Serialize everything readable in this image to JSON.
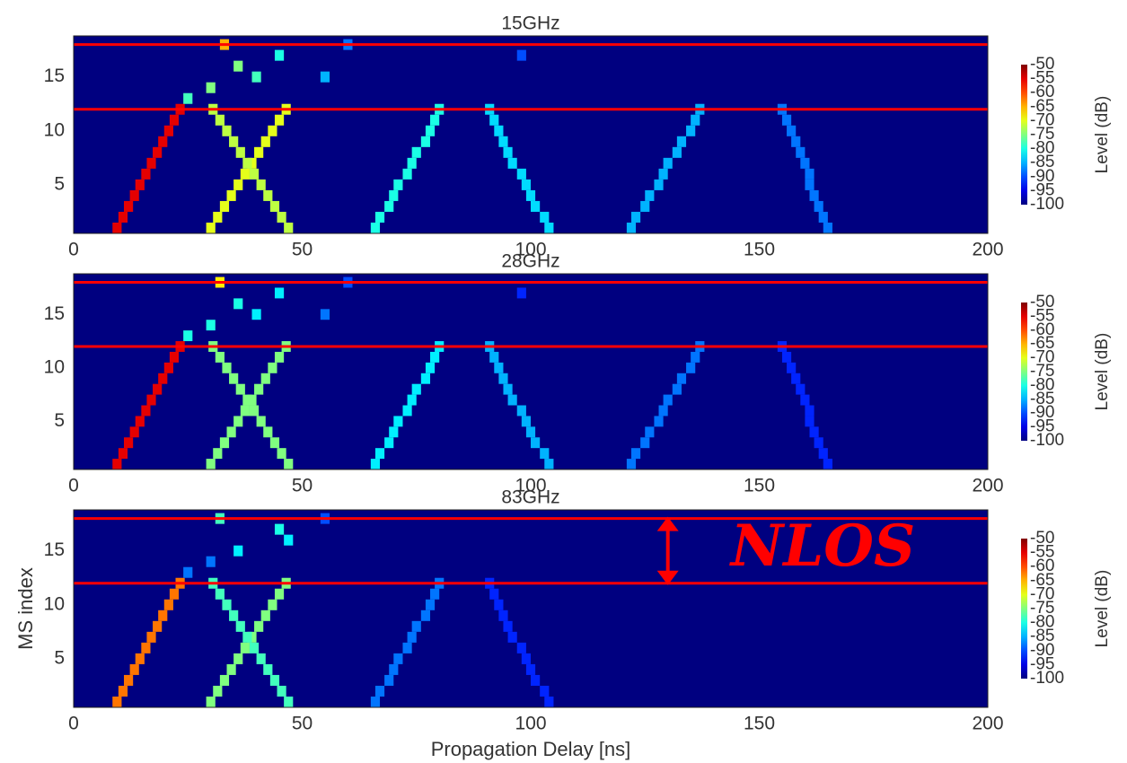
{
  "chart_data": [
    {
      "type": "heatmap",
      "title": "15GHz",
      "xlim": [
        0,
        200
      ],
      "xticks": [
        0,
        50,
        100,
        150,
        200
      ],
      "ylim": [
        0.5,
        18.8
      ],
      "yticks": [
        5,
        10,
        15
      ],
      "background": -100,
      "hlines": [
        12,
        18
      ],
      "hline_color": "#ff0000",
      "colorbar": {
        "label": "Level (dB)",
        "clim": [
          -100,
          -50
        ],
        "ticks": [
          -50,
          -55,
          -60,
          -65,
          -70,
          -75,
          -80,
          -85,
          -90,
          -95,
          -100
        ],
        "colormap": "jet"
      },
      "x": [
        9.5,
        10.8,
        12,
        13.3,
        14.5,
        15.8,
        17,
        18.3,
        19.5,
        20.8,
        22,
        23.3,
        30,
        31.5,
        33,
        34.5,
        36,
        37.5,
        39,
        40.5,
        42,
        43.5,
        45,
        46.5,
        47,
        45.5,
        44,
        42.5,
        41,
        39.5,
        38,
        36.5,
        35,
        33.5,
        32,
        30.5,
        66,
        67,
        69,
        70,
        71,
        73,
        74,
        75,
        77,
        78,
        79,
        80,
        104,
        103,
        101,
        100,
        99,
        98,
        96,
        95,
        94,
        93,
        92,
        91,
        122,
        123,
        125,
        126,
        128,
        129,
        130,
        132,
        133,
        135,
        136,
        137,
        165,
        164,
        163,
        162,
        161,
        161,
        160,
        159,
        158,
        157,
        156,
        155,
        33,
        36,
        40,
        30,
        45,
        55,
        25,
        60,
        98
      ],
      "y": [
        1,
        2,
        3,
        4,
        5,
        6,
        7,
        8,
        9,
        10,
        11,
        12,
        1,
        2,
        3,
        4,
        5,
        6,
        7,
        8,
        9,
        10,
        11,
        12,
        1,
        2,
        3,
        4,
        5,
        6,
        7,
        8,
        9,
        10,
        11,
        12,
        1,
        2,
        3,
        4,
        5,
        6,
        7,
        8,
        9,
        10,
        11,
        12,
        1,
        2,
        3,
        4,
        5,
        6,
        7,
        8,
        9,
        10,
        11,
        12,
        1,
        2,
        3,
        4,
        5,
        6,
        7,
        8,
        9,
        10,
        11,
        12,
        1,
        2,
        3,
        4,
        5,
        6,
        7,
        8,
        9,
        10,
        11,
        12,
        18,
        16,
        15,
        14,
        17,
        15,
        13,
        18,
        17
      ],
      "values": [
        -55,
        -55,
        -55,
        -55,
        -55,
        -55,
        -55,
        -55,
        -55,
        -55,
        -55,
        -55,
        -70,
        -70,
        -70,
        -70,
        -70,
        -70,
        -70,
        -70,
        -70,
        -70,
        -70,
        -70,
        -72,
        -72,
        -72,
        -72,
        -72,
        -72,
        -72,
        -72,
        -72,
        -72,
        -72,
        -72,
        -80,
        -80,
        -80,
        -80,
        -80,
        -80,
        -80,
        -80,
        -80,
        -80,
        -80,
        -80,
        -83,
        -83,
        -83,
        -83,
        -83,
        -83,
        -83,
        -83,
        -83,
        -83,
        -83,
        -83,
        -85,
        -85,
        -85,
        -85,
        -85,
        -85,
        -85,
        -85,
        -85,
        -85,
        -85,
        -85,
        -88,
        -88,
        -88,
        -88,
        -88,
        -88,
        -88,
        -88,
        -88,
        -88,
        -88,
        -88,
        -65,
        -75,
        -78,
        -75,
        -80,
        -85,
        -78,
        -88,
        -90
      ]
    },
    {
      "type": "heatmap",
      "title": "28GHz",
      "xlim": [
        0,
        200
      ],
      "xticks": [
        0,
        50,
        100,
        150,
        200
      ],
      "ylim": [
        0.5,
        18.8
      ],
      "yticks": [
        5,
        10,
        15
      ],
      "background": -100,
      "hlines": [
        12,
        18
      ],
      "hline_color": "#ff0000",
      "colorbar": {
        "label": "Level (dB)",
        "clim": [
          -100,
          -50
        ],
        "ticks": [
          -50,
          -55,
          -60,
          -65,
          -70,
          -75,
          -80,
          -85,
          -90,
          -95,
          -100
        ],
        "colormap": "jet"
      },
      "x": [
        9.5,
        10.8,
        12,
        13.3,
        14.5,
        15.8,
        17,
        18.3,
        19.5,
        20.8,
        22,
        23.3,
        30,
        31.5,
        33,
        34.5,
        36,
        37.5,
        39,
        40.5,
        42,
        43.5,
        45,
        46.5,
        47,
        45.5,
        44,
        42.5,
        41,
        39.5,
        38,
        36.5,
        35,
        33.5,
        32,
        30.5,
        66,
        67,
        69,
        70,
        71,
        73,
        74,
        75,
        77,
        78,
        79,
        80,
        104,
        103,
        101,
        100,
        99,
        98,
        96,
        95,
        94,
        93,
        92,
        91,
        122,
        123,
        125,
        126,
        128,
        129,
        130,
        132,
        133,
        135,
        136,
        137,
        165,
        164,
        163,
        162,
        161,
        161,
        160,
        159,
        158,
        157,
        156,
        155,
        32,
        36,
        40,
        30,
        45,
        55,
        25,
        60,
        98
      ],
      "y": [
        1,
        2,
        3,
        4,
        5,
        6,
        7,
        8,
        9,
        10,
        11,
        12,
        1,
        2,
        3,
        4,
        5,
        6,
        7,
        8,
        9,
        10,
        11,
        12,
        1,
        2,
        3,
        4,
        5,
        6,
        7,
        8,
        9,
        10,
        11,
        12,
        1,
        2,
        3,
        4,
        5,
        6,
        7,
        8,
        9,
        10,
        11,
        12,
        1,
        2,
        3,
        4,
        5,
        6,
        7,
        8,
        9,
        10,
        11,
        12,
        1,
        2,
        3,
        4,
        5,
        6,
        7,
        8,
        9,
        10,
        11,
        12,
        1,
        2,
        3,
        4,
        5,
        6,
        7,
        8,
        9,
        10,
        11,
        12,
        18,
        16,
        15,
        14,
        17,
        15,
        13,
        18,
        17
      ],
      "values": [
        -55,
        -55,
        -55,
        -55,
        -55,
        -55,
        -55,
        -55,
        -55,
        -55,
        -55,
        -55,
        -75,
        -75,
        -75,
        -75,
        -75,
        -75,
        -75,
        -75,
        -75,
        -75,
        -75,
        -75,
        -75,
        -75,
        -75,
        -75,
        -75,
        -75,
        -75,
        -75,
        -75,
        -75,
        -75,
        -75,
        -82,
        -82,
        -82,
        -82,
        -82,
        -82,
        -82,
        -82,
        -82,
        -82,
        -82,
        -82,
        -85,
        -85,
        -85,
        -85,
        -85,
        -85,
        -85,
        -85,
        -85,
        -85,
        -85,
        -85,
        -88,
        -88,
        -88,
        -88,
        -88,
        -88,
        -88,
        -88,
        -88,
        -88,
        -88,
        -88,
        -92,
        -92,
        -92,
        -92,
        -92,
        -92,
        -92,
        -92,
        -92,
        -92,
        -92,
        -92,
        -68,
        -80,
        -82,
        -80,
        -82,
        -88,
        -80,
        -90,
        -92
      ]
    },
    {
      "type": "heatmap",
      "title": "83GHz",
      "xlabel": "Propagation Delay [ns]",
      "ylabel": "MS index",
      "xlim": [
        0,
        200
      ],
      "xticks": [
        0,
        50,
        100,
        150,
        200
      ],
      "ylim": [
        0.5,
        18.8
      ],
      "yticks": [
        5,
        10,
        15
      ],
      "background": -100,
      "hlines": [
        12,
        18
      ],
      "hline_color": "#ff0000",
      "annotation": {
        "text": "NLOS",
        "x": 130,
        "y": [
          12,
          18
        ],
        "color": "#ff0000"
      },
      "colorbar": {
        "label": "Level (dB)",
        "clim": [
          -100,
          -50
        ],
        "ticks": [
          -50,
          -55,
          -60,
          -65,
          -70,
          -75,
          -80,
          -85,
          -90,
          -95,
          -100
        ],
        "colormap": "jet"
      },
      "x": [
        9.5,
        10.8,
        12,
        13.3,
        14.5,
        15.8,
        17,
        18.3,
        19.5,
        20.8,
        22,
        23.3,
        30,
        31.5,
        33,
        34.5,
        36,
        37.5,
        39,
        40.5,
        42,
        43.5,
        45,
        46.5,
        47,
        45.5,
        44,
        42.5,
        41,
        39.5,
        38,
        36.5,
        35,
        33.5,
        32,
        30.5,
        66,
        67,
        69,
        70,
        71,
        73,
        74,
        75,
        77,
        78,
        79,
        80,
        104,
        103,
        101,
        100,
        99,
        98,
        96,
        95,
        94,
        93,
        92,
        91,
        32,
        36,
        45,
        47,
        30,
        55,
        25
      ],
      "y": [
        1,
        2,
        3,
        4,
        5,
        6,
        7,
        8,
        9,
        10,
        11,
        12,
        1,
        2,
        3,
        4,
        5,
        6,
        7,
        8,
        9,
        10,
        11,
        12,
        1,
        2,
        3,
        4,
        5,
        6,
        7,
        8,
        9,
        10,
        11,
        12,
        1,
        2,
        3,
        4,
        5,
        6,
        7,
        8,
        9,
        10,
        11,
        12,
        1,
        2,
        3,
        4,
        5,
        6,
        7,
        8,
        9,
        10,
        11,
        12,
        18,
        15,
        17,
        16,
        14,
        18,
        13
      ],
      "values": [
        -62,
        -62,
        -62,
        -62,
        -62,
        -62,
        -62,
        -62,
        -62,
        -62,
        -62,
        -62,
        -75,
        -75,
        -75,
        -75,
        -75,
        -75,
        -75,
        -75,
        -75,
        -75,
        -75,
        -75,
        -78,
        -78,
        -78,
        -78,
        -78,
        -78,
        -78,
        -78,
        -78,
        -78,
        -78,
        -78,
        -88,
        -88,
        -88,
        -88,
        -88,
        -88,
        -88,
        -88,
        -88,
        -88,
        -88,
        -88,
        -92,
        -92,
        -92,
        -92,
        -92,
        -92,
        -92,
        -92,
        -92,
        -92,
        -92,
        -92,
        -78,
        -82,
        -80,
        -82,
        -88,
        -90,
        -88
      ]
    }
  ]
}
